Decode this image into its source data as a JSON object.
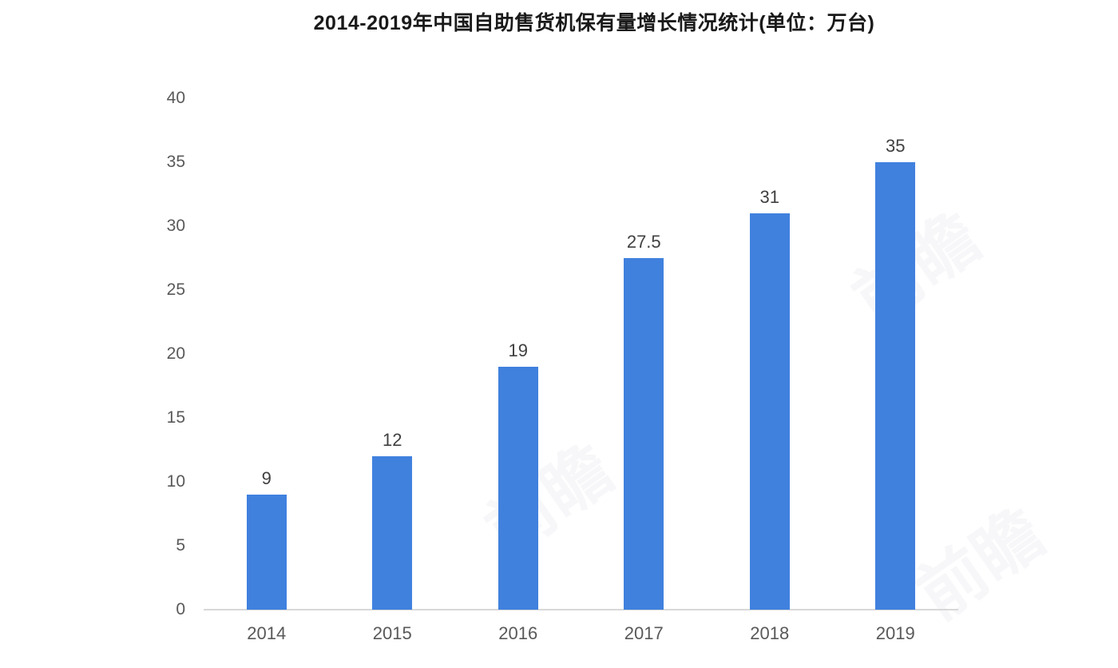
{
  "page": {
    "background": "#ffffff"
  },
  "chart_data": {
    "type": "bar",
    "title": "2014-2019年中国自助售货机保有量增长情况统计(单位：万台)",
    "categories": [
      "2014",
      "2015",
      "2016",
      "2017",
      "2018",
      "2019"
    ],
    "values": [
      9,
      12,
      19,
      27.5,
      31,
      35
    ],
    "value_labels": [
      "9",
      "12",
      "19",
      "27.5",
      "31",
      "35"
    ],
    "xlabel": "",
    "ylabel": "",
    "ylim": [
      0,
      40
    ],
    "yticks": [
      0,
      5,
      10,
      15,
      20,
      25,
      30,
      35,
      40
    ],
    "grid": false,
    "legend": "none",
    "bar_color": "#4081de",
    "title_color": "#1a1a1a",
    "tick_label_color": "#595959",
    "value_label_color": "#404040",
    "axis_line_color": "#d8d8d8"
  },
  "watermark": {
    "text": "前瞻",
    "color": "#c9ccd6"
  }
}
